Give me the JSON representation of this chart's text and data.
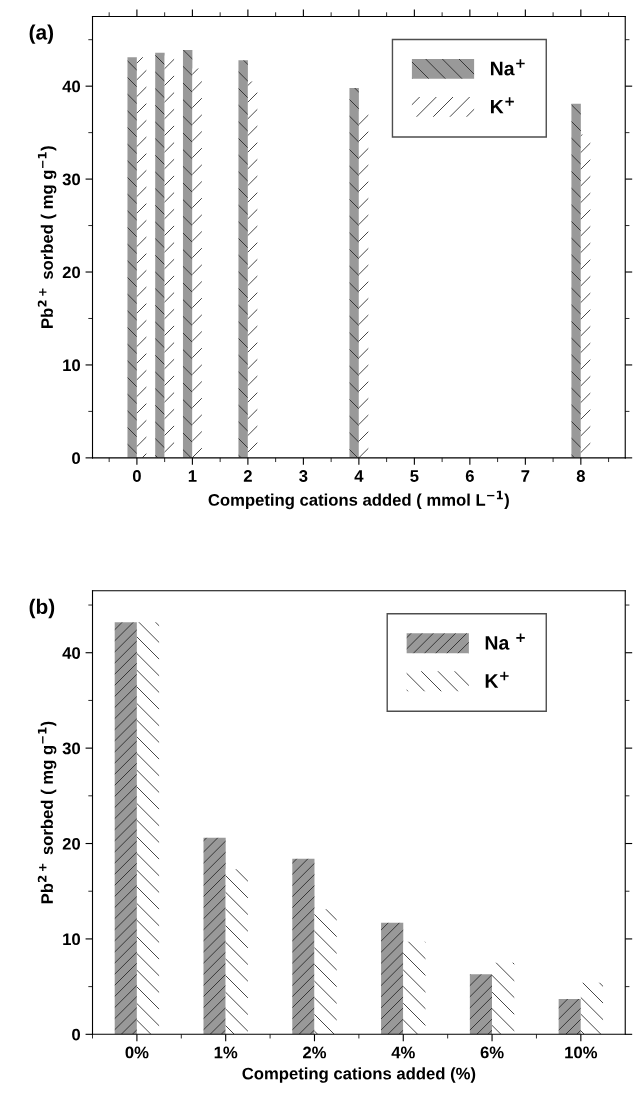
{
  "chart_data": [
    {
      "type": "bar",
      "annotations": [
        "(a)"
      ],
      "xlabel": "Competing cations added ( mmol L$^{−1}$)",
      "ylabel": "Pb$^{2+}$ sorbed ( mg g$^{−1}$)",
      "x": [
        0,
        0.5,
        1,
        2,
        4,
        8
      ],
      "series": [
        {
          "name": "Na$^{+}$",
          "color": "#999999",
          "values": [
            43.1,
            43.6,
            43.9,
            42.8,
            39.8,
            38.1
          ]
        },
        {
          "name": "K$^{+}$",
          "color": "#ffffff",
          "values": [
            43.1,
            43.3,
            41.9,
            40.5,
            37.3,
            34.8
          ]
        }
      ],
      "xlim": [
        -0.8,
        8.8
      ],
      "xticks": [
        0,
        1,
        2,
        3,
        4,
        5,
        6,
        7,
        8
      ],
      "ylim": [
        0,
        47.5
      ],
      "yticks": [
        0,
        10,
        20,
        30,
        40
      ],
      "legend": "top right",
      "grid": false
    },
    {
      "type": "bar",
      "annotations": [
        "(b)"
      ],
      "xlabel": "Competing cations added (%)",
      "ylabel": "Pb$^{2+}$ sorbed ( mg g$^{−1}$)",
      "categories": [
        "0%",
        "1%",
        "2%",
        "4%",
        "6%",
        "10%"
      ],
      "series": [
        {
          "name": "Na $^{+}$",
          "color": "#999999",
          "values": [
            43.2,
            20.6,
            18.4,
            11.7,
            6.3,
            3.7
          ]
        },
        {
          "name": "K$^{+}$",
          "color": "#ffffff",
          "values": [
            43.2,
            17.3,
            13.1,
            9.7,
            7.5,
            5.4
          ]
        }
      ],
      "ylim": [
        0,
        46.5
      ],
      "yticks": [
        0,
        10,
        20,
        30,
        40
      ],
      "legend": "top right",
      "grid": false
    }
  ]
}
